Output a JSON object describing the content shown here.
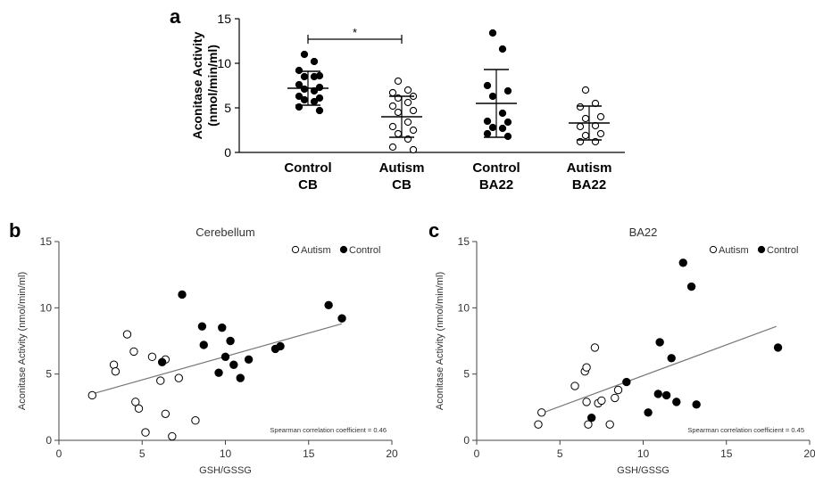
{
  "chart_data": [
    {
      "panel_label": "a",
      "type": "scatter",
      "categories": [
        "Control\nCB",
        "Autism\nCB",
        "Control\nBA22",
        "Autism\nBA22"
      ],
      "ylabel": "Aconitase Activity\n(nmol/min/ml)",
      "ylim": [
        0,
        15
      ],
      "yticks": [
        0,
        5,
        10,
        15
      ],
      "significance": {
        "between": [
          0,
          1
        ],
        "label": "*"
      },
      "groups": [
        {
          "category": "Control\nCB",
          "fill": "filled",
          "mean": 7.2,
          "sd": 1.9,
          "values": [
            11.0,
            10.2,
            9.2,
            8.6,
            8.5,
            8.5,
            7.6,
            7.3,
            7.1,
            6.9,
            6.3,
            6.1,
            5.9,
            5.7,
            5.1,
            4.7
          ]
        },
        {
          "category": "Autism\nCB",
          "fill": "open",
          "mean": 4.0,
          "sd": 2.3,
          "values": [
            8.0,
            7.0,
            6.7,
            6.3,
            6.1,
            5.6,
            5.2,
            4.7,
            4.5,
            3.4,
            2.9,
            2.5,
            2.1,
            1.5,
            0.6,
            0.3
          ]
        },
        {
          "category": "Control\nBA22",
          "fill": "filled",
          "mean": 5.5,
          "sd": 3.8,
          "values": [
            13.4,
            11.6,
            7.5,
            6.9,
            6.3,
            4.4,
            3.5,
            3.4,
            2.8,
            2.7,
            2.1,
            1.8
          ]
        },
        {
          "category": "Autism\nBA22",
          "fill": "open",
          "mean": 3.3,
          "sd": 1.9,
          "values": [
            7.0,
            5.5,
            5.1,
            4.0,
            3.8,
            3.0,
            2.9,
            2.1,
            1.9,
            1.2,
            1.2
          ]
        }
      ]
    },
    {
      "panel_label": "b",
      "type": "scatter",
      "title": "Cerebellum",
      "xlabel": "GSH/GSSG",
      "ylabel": "Aconitase Activity (nmol/min/ml)",
      "xlim": [
        0,
        20
      ],
      "ylim": [
        0,
        15
      ],
      "xticks": [
        0,
        5,
        10,
        15,
        20
      ],
      "yticks": [
        0,
        5,
        10,
        15
      ],
      "legend": [
        "Autism",
        "Control"
      ],
      "annotation": "Spearman correlation coefficient = 0.46",
      "trendline": {
        "x": [
          2.0,
          17.0
        ],
        "y": [
          3.5,
          8.8
        ]
      },
      "series": [
        {
          "name": "Autism",
          "fill": "open",
          "x": [
            2.0,
            3.3,
            3.4,
            4.1,
            4.5,
            4.6,
            4.8,
            5.2,
            5.6,
            6.1,
            6.4,
            6.4,
            6.8,
            7.2,
            8.2
          ],
          "y": [
            3.4,
            5.7,
            5.2,
            8.0,
            6.7,
            2.9,
            2.4,
            0.6,
            6.3,
            4.5,
            6.1,
            2.0,
            0.3,
            4.7,
            1.5
          ]
        },
        {
          "name": "Control",
          "fill": "filled",
          "x": [
            6.2,
            7.4,
            8.6,
            8.7,
            9.6,
            9.8,
            10.0,
            10.3,
            10.5,
            10.9,
            11.4,
            13.0,
            13.3,
            16.2,
            17.0
          ],
          "y": [
            5.9,
            11.0,
            8.6,
            7.2,
            5.1,
            8.5,
            6.3,
            7.5,
            5.7,
            4.7,
            6.1,
            6.9,
            7.1,
            10.2,
            9.2
          ]
        }
      ]
    },
    {
      "panel_label": "c",
      "type": "scatter",
      "title": "BA22",
      "xlabel": "GSH/GSSG",
      "ylabel": "Aconitase Activity (nmol/min/ml)",
      "xlim": [
        0,
        20
      ],
      "ylim": [
        0,
        15
      ],
      "xticks": [
        0,
        5,
        10,
        15,
        20
      ],
      "yticks": [
        0,
        5,
        10,
        15
      ],
      "legend": [
        "Autism",
        "Control"
      ],
      "annotation": "Spearman correlation coefficient = 0.45",
      "trendline": {
        "x": [
          3.8,
          18.0
        ],
        "y": [
          2.0,
          8.6
        ]
      },
      "series": [
        {
          "name": "Autism",
          "fill": "open",
          "x": [
            3.7,
            3.9,
            5.9,
            6.5,
            6.6,
            6.6,
            6.7,
            7.1,
            7.3,
            7.5,
            8.0,
            8.3,
            8.5
          ],
          "y": [
            1.2,
            2.1,
            4.1,
            5.2,
            5.5,
            2.9,
            1.2,
            7.0,
            2.8,
            3.0,
            1.2,
            3.2,
            3.8
          ]
        },
        {
          "name": "Control",
          "fill": "filled",
          "x": [
            6.9,
            9.0,
            10.3,
            10.9,
            11.0,
            11.4,
            11.7,
            12.0,
            12.4,
            12.9,
            13.2,
            18.1
          ],
          "y": [
            1.7,
            4.4,
            2.1,
            3.5,
            7.4,
            3.4,
            6.2,
            2.9,
            13.4,
            11.6,
            2.7,
            7.0
          ]
        }
      ]
    }
  ]
}
